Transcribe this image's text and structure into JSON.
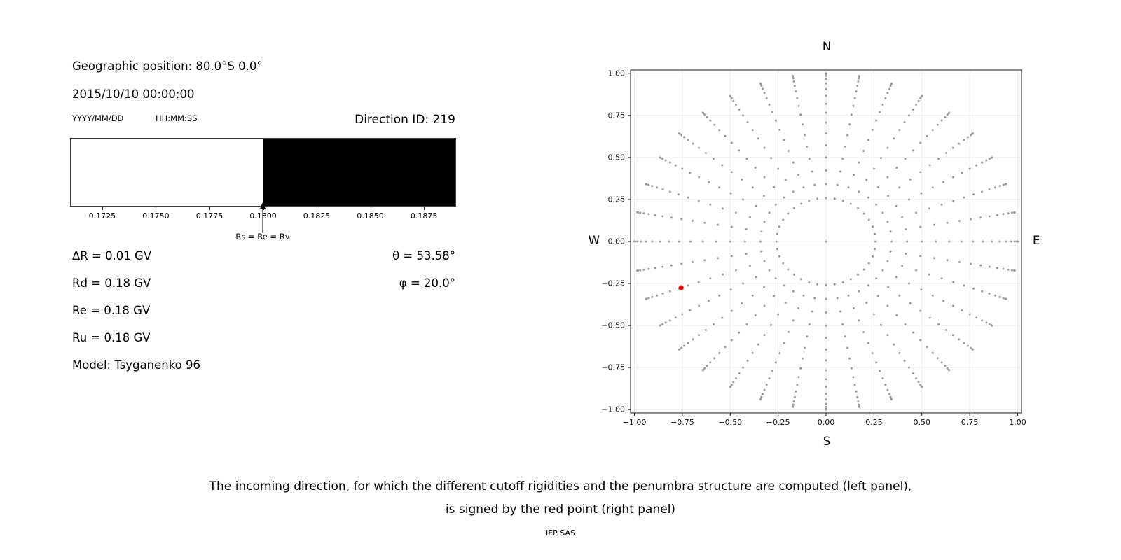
{
  "colors": {
    "dot_gray": "#9a9a9a",
    "selected_red": "#ff0000",
    "forbidden_black": "#000000",
    "allowed_white": "#ffffff",
    "grid_gray": "#ececec",
    "axis_dark": "#1a1a1a"
  },
  "left_panel": {
    "geographic_position": "Geographic position: 80.0°S 0.0°",
    "datetime": "2015/10/10 00:00:00",
    "date_format": "YYYY/MM/DD",
    "time_format": "HH:MM:SS",
    "direction_id": "Direction ID: 219",
    "penumbra": {
      "xlim": [
        0.171,
        0.189
      ],
      "transition_value": 0.18,
      "tick_values": [
        0.1725,
        0.175,
        0.1775,
        0.18,
        0.1825,
        0.185,
        0.1875
      ],
      "tick_labels": [
        "0.1725",
        "0.1750",
        "0.1775",
        "0.1800",
        "0.1825",
        "0.1850",
        "0.1875"
      ],
      "arrow_label": "Rs = Re = Rv"
    },
    "parameters": [
      "ΔR = 0.01 GV",
      "Rd = 0.18 GV",
      "Re = 0.18 GV",
      "Ru = 0.18 GV",
      "Model: Tsyganenko 96"
    ],
    "theta": "θ = 53.58°",
    "phi": "φ = 20.0°"
  },
  "chart_data": {
    "type": "scatter",
    "description": "Grid of possible cosmic-ray incoming directions projected on the horizontal plane (r = sin(zenith)); the red point marks the selected direction ID 219 (theta = 53.58°, phi = 20.0°).",
    "xlim": [
      -1.02,
      1.02
    ],
    "ylim": [
      -1.02,
      1.02
    ],
    "xtick_values": [
      -1,
      -0.75,
      -0.5,
      -0.25,
      0,
      0.25,
      0.5,
      0.75,
      1
    ],
    "xtick_labels": [
      "−1.00",
      "−0.75",
      "−0.50",
      "−0.25",
      "0.00",
      "0.25",
      "0.50",
      "0.75",
      "1.00"
    ],
    "ytick_values": [
      -1,
      -0.75,
      -0.5,
      -0.25,
      0,
      0.25,
      0.5,
      0.75,
      1
    ],
    "ytick_labels": [
      "−1.00",
      "−0.75",
      "−0.50",
      "−0.25",
      "0.00",
      "0.25",
      "0.50",
      "0.75",
      "1.00"
    ],
    "grid": true,
    "legend": "none",
    "compass": {
      "top": "N",
      "bottom": "S",
      "left": "W",
      "right": "E"
    },
    "series": [
      {
        "name": "direction-grid",
        "marker": "dot",
        "color": "#9a9a9a",
        "generator": {
          "kind": "polar-direction-grid",
          "azimuth_start_deg": 0,
          "azimuth_step_deg": 10,
          "azimuth_count": 36,
          "zenith_deg": [
            0,
            15,
            20,
            25,
            30,
            35,
            40,
            45,
            50,
            55,
            60,
            65,
            70,
            75,
            80,
            85,
            90
          ],
          "radius_rule": "sin(zenith)"
        }
      },
      {
        "name": "selected-direction",
        "marker": "dot",
        "color": "#ff0000",
        "theta_deg": 53.58,
        "phi_deg": 20.0,
        "points": [
          [
            -0.756,
            -0.275
          ]
        ]
      }
    ]
  },
  "caption": {
    "line1": "The incoming direction, for which the different cutoff rigidities and the penumbra structure are computed (left panel),",
    "line2": "is signed by the red point (right panel)",
    "credit": "IEP SAS"
  }
}
